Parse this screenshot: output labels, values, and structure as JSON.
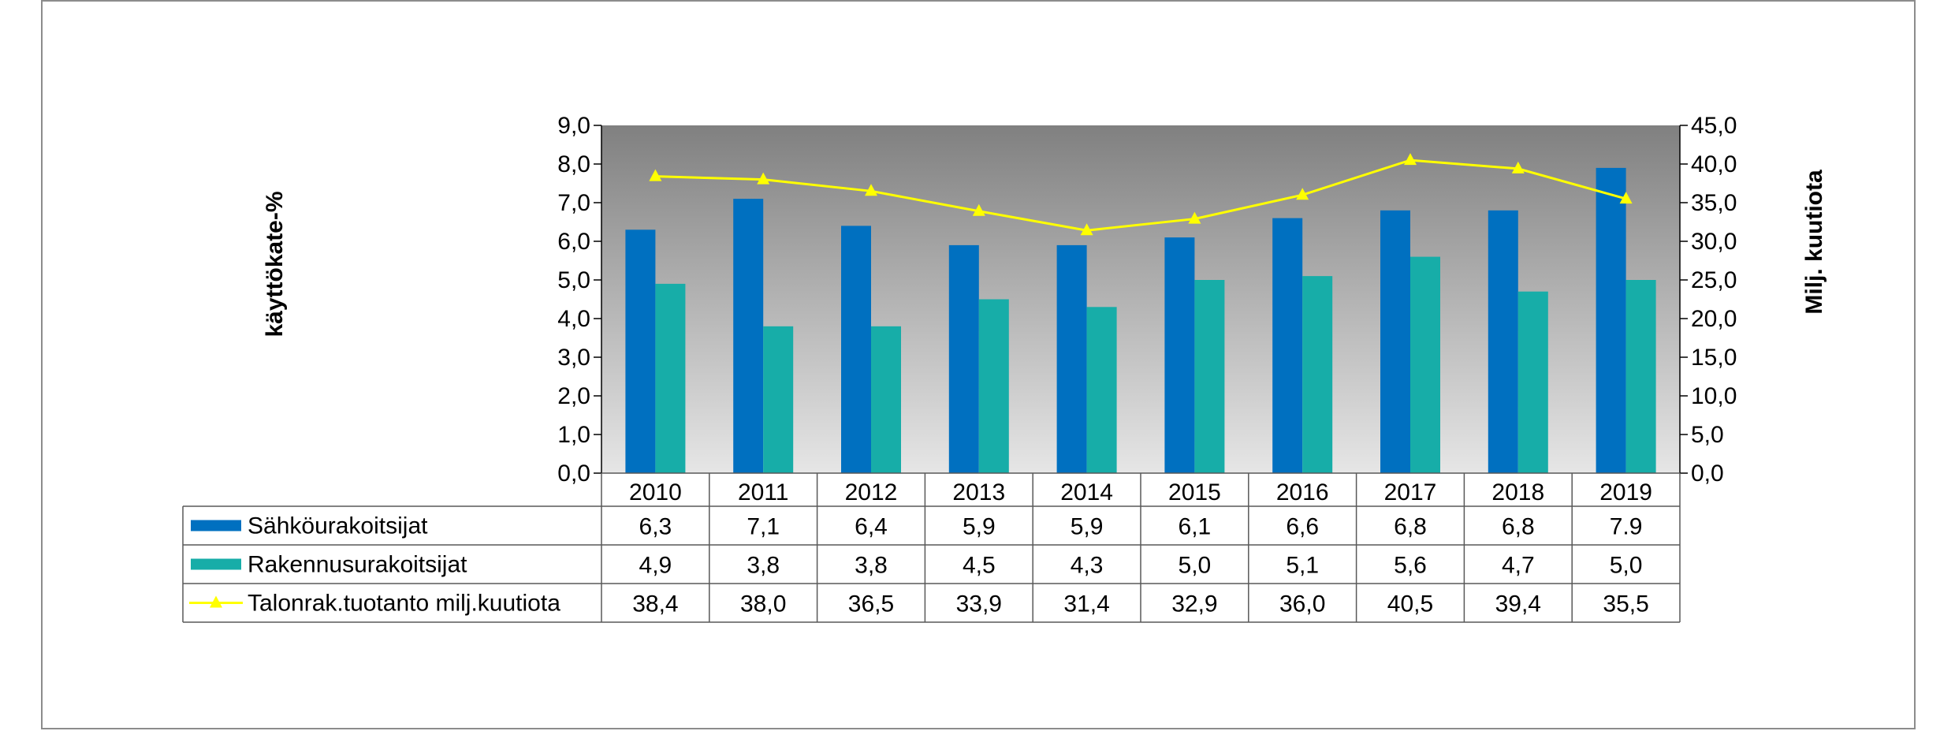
{
  "chart_data": {
    "type": "bar",
    "categories": [
      "2010",
      "2011",
      "2012",
      "2013",
      "2014",
      "2015",
      "2016",
      "2017",
      "2018",
      "2019"
    ],
    "series": [
      {
        "name": "Sähköurakoitsijat",
        "type": "bar",
        "axis": "left",
        "color": "#0070c0",
        "values": [
          6.3,
          7.1,
          6.4,
          5.9,
          5.9,
          6.1,
          6.6,
          6.8,
          6.8,
          7.9
        ],
        "labels": [
          "6,3",
          "7,1",
          "6,4",
          "5,9",
          "5,9",
          "6,1",
          "6,6",
          "6,8",
          "6,8",
          "7.9"
        ]
      },
      {
        "name": "Rakennusurakoitsijat",
        "type": "bar",
        "axis": "left",
        "color": "#17ada8",
        "values": [
          4.9,
          3.8,
          3.8,
          4.5,
          4.3,
          5.0,
          5.1,
          5.6,
          4.7,
          5.0
        ],
        "labels": [
          "4,9",
          "3,8",
          "3,8",
          "4,5",
          "4,3",
          "5,0",
          "5,1",
          "5,6",
          "4,7",
          "5,0"
        ]
      },
      {
        "name": "Talonrak.tuotanto milj.kuutiota",
        "type": "line",
        "axis": "right",
        "color": "#ffff00",
        "marker": "triangle",
        "values": [
          38.4,
          38.0,
          36.5,
          33.9,
          31.4,
          32.9,
          36.0,
          40.5,
          39.4,
          35.5
        ],
        "labels": [
          "38,4",
          "38,0",
          "36,5",
          "33,9",
          "31,4",
          "32,9",
          "36,0",
          "40,5",
          "39,4",
          "35,5"
        ]
      }
    ],
    "ylabel": "käyttökate-%",
    "y2label": "Milj. kuutiota",
    "ylim": [
      0,
      9
    ],
    "y2lim": [
      0,
      45
    ],
    "yticks": [
      "0,0",
      "1,0",
      "2,0",
      "3,0",
      "4,0",
      "5,0",
      "6,0",
      "7,0",
      "8,0",
      "9,0"
    ],
    "y2ticks": [
      "0,0",
      "5,0",
      "10,0",
      "15,0",
      "20,0",
      "25,0",
      "30,0",
      "35,0",
      "40,0",
      "45,0"
    ],
    "plot_background": [
      "#808080",
      "#e6e6e6"
    ],
    "data_table": true,
    "legend": "data-table"
  }
}
